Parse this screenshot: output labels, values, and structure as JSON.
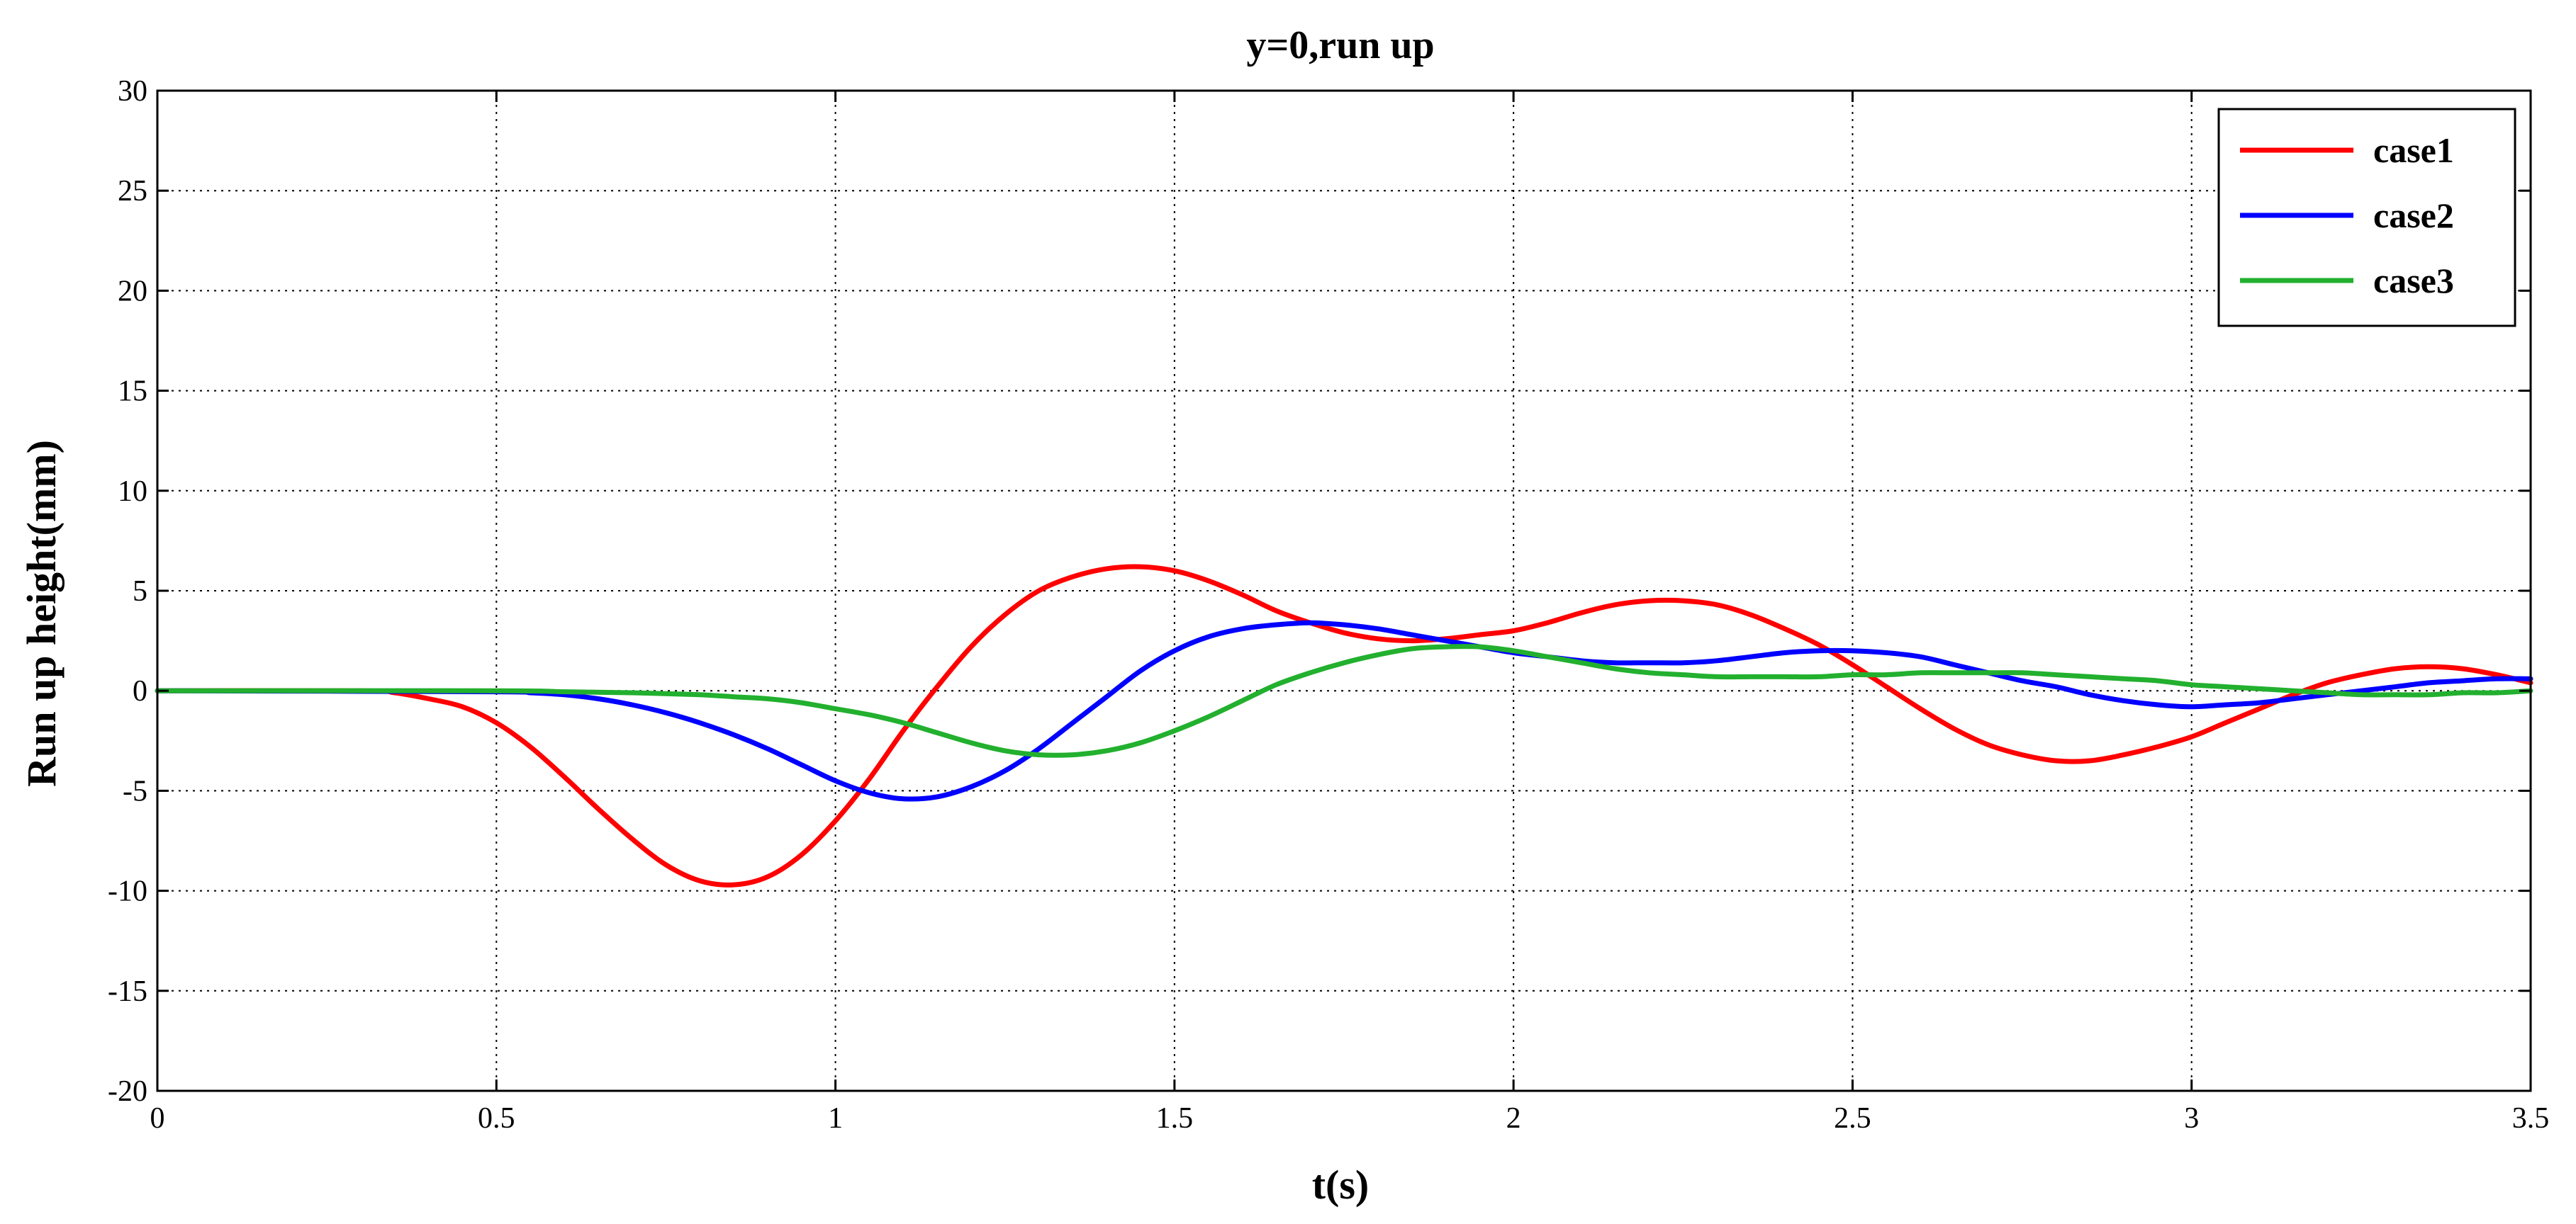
{
  "chart_data": {
    "type": "line",
    "title": "y=0,run up",
    "xlabel": "t(s)",
    "ylabel": "Run up height(mm)",
    "xlim": [
      0,
      3.5
    ],
    "ylim": [
      -20,
      30
    ],
    "x_ticks": [
      0,
      0.5,
      1,
      1.5,
      2,
      2.5,
      3,
      3.5
    ],
    "y_ticks": [
      -20,
      -15,
      -10,
      -5,
      0,
      5,
      10,
      15,
      20,
      25,
      30
    ],
    "x_tick_labels": [
      "0",
      "0.5",
      "1",
      "1.5",
      "2",
      "2.5",
      "3",
      "3.5"
    ],
    "y_tick_labels": [
      "-20",
      "-15",
      "-10",
      "-5",
      "0",
      "5",
      "10",
      "15",
      "20",
      "25",
      "30"
    ],
    "grid": true,
    "legend_position": "top-right",
    "series": [
      {
        "name": "case1",
        "color": "#ff0000",
        "x": [
          0,
          0.3,
          0.35,
          0.4,
          0.45,
          0.5,
          0.55,
          0.6,
          0.65,
          0.7,
          0.75,
          0.8,
          0.85,
          0.9,
          0.95,
          1.0,
          1.05,
          1.1,
          1.15,
          1.2,
          1.25,
          1.3,
          1.35,
          1.4,
          1.45,
          1.5,
          1.55,
          1.6,
          1.65,
          1.7,
          1.75,
          1.8,
          1.85,
          1.9,
          1.95,
          2.0,
          2.05,
          2.1,
          2.15,
          2.2,
          2.25,
          2.3,
          2.35,
          2.4,
          2.45,
          2.5,
          2.55,
          2.6,
          2.65,
          2.7,
          2.75,
          2.8,
          2.85,
          2.9,
          2.95,
          3.0,
          3.05,
          3.1,
          3.15,
          3.2,
          3.25,
          3.3,
          3.35,
          3.4,
          3.45,
          3.5
        ],
        "values": [
          0,
          0,
          -0.1,
          -0.4,
          -0.8,
          -1.6,
          -2.8,
          -4.3,
          -5.9,
          -7.4,
          -8.7,
          -9.5,
          -9.7,
          -9.3,
          -8.2,
          -6.5,
          -4.4,
          -2.0,
          0.2,
          2.2,
          3.8,
          5.0,
          5.7,
          6.1,
          6.2,
          6.0,
          5.5,
          4.8,
          4.0,
          3.4,
          2.9,
          2.6,
          2.5,
          2.6,
          2.8,
          3.0,
          3.4,
          3.9,
          4.3,
          4.5,
          4.5,
          4.3,
          3.8,
          3.1,
          2.3,
          1.3,
          0.2,
          -0.9,
          -1.9,
          -2.7,
          -3.2,
          -3.5,
          -3.5,
          -3.2,
          -2.8,
          -2.3,
          -1.6,
          -0.9,
          -0.2,
          0.4,
          0.8,
          1.1,
          1.2,
          1.1,
          0.8,
          0.4
        ]
      },
      {
        "name": "case2",
        "color": "#0000ff",
        "x": [
          0,
          0.5,
          0.55,
          0.6,
          0.65,
          0.7,
          0.75,
          0.8,
          0.85,
          0.9,
          0.95,
          1.0,
          1.05,
          1.1,
          1.15,
          1.2,
          1.25,
          1.3,
          1.35,
          1.4,
          1.45,
          1.5,
          1.55,
          1.6,
          1.65,
          1.7,
          1.75,
          1.8,
          1.85,
          1.9,
          1.95,
          2.0,
          2.05,
          2.1,
          2.15,
          2.2,
          2.25,
          2.3,
          2.35,
          2.4,
          2.45,
          2.5,
          2.55,
          2.6,
          2.65,
          2.7,
          2.75,
          2.8,
          2.85,
          2.9,
          2.95,
          3.0,
          3.05,
          3.1,
          3.15,
          3.2,
          3.25,
          3.3,
          3.35,
          3.4,
          3.45,
          3.5
        ],
        "values": [
          0,
          -0.05,
          -0.1,
          -0.2,
          -0.4,
          -0.7,
          -1.1,
          -1.6,
          -2.2,
          -2.9,
          -3.7,
          -4.5,
          -5.1,
          -5.4,
          -5.3,
          -4.8,
          -4.0,
          -2.9,
          -1.6,
          -0.3,
          1.0,
          2.0,
          2.7,
          3.1,
          3.3,
          3.4,
          3.3,
          3.1,
          2.8,
          2.5,
          2.2,
          1.9,
          1.7,
          1.5,
          1.4,
          1.4,
          1.4,
          1.5,
          1.7,
          1.9,
          2.0,
          2.0,
          1.9,
          1.7,
          1.3,
          0.9,
          0.5,
          0.2,
          -0.2,
          -0.5,
          -0.7,
          -0.8,
          -0.7,
          -0.6,
          -0.4,
          -0.2,
          0.0,
          0.2,
          0.4,
          0.5,
          0.6,
          0.6
        ]
      },
      {
        "name": "case3",
        "color": "#22b02e",
        "x": [
          0,
          0.5,
          0.6,
          0.7,
          0.8,
          0.85,
          0.9,
          0.95,
          1.0,
          1.05,
          1.1,
          1.15,
          1.2,
          1.25,
          1.3,
          1.35,
          1.4,
          1.45,
          1.5,
          1.55,
          1.6,
          1.65,
          1.7,
          1.75,
          1.8,
          1.85,
          1.9,
          1.95,
          2.0,
          2.05,
          2.1,
          2.15,
          2.2,
          2.25,
          2.3,
          2.35,
          2.4,
          2.45,
          2.5,
          2.55,
          2.6,
          2.65,
          2.7,
          2.75,
          2.8,
          2.85,
          2.9,
          2.95,
          3.0,
          3.05,
          3.1,
          3.15,
          3.2,
          3.25,
          3.3,
          3.35,
          3.4,
          3.45,
          3.5
        ],
        "values": [
          0,
          0,
          -0.05,
          -0.1,
          -0.2,
          -0.3,
          -0.4,
          -0.6,
          -0.9,
          -1.2,
          -1.6,
          -2.1,
          -2.6,
          -3.0,
          -3.2,
          -3.2,
          -3.0,
          -2.6,
          -2.0,
          -1.3,
          -0.5,
          0.3,
          0.9,
          1.4,
          1.8,
          2.1,
          2.2,
          2.2,
          2.0,
          1.7,
          1.4,
          1.1,
          0.9,
          0.8,
          0.7,
          0.7,
          0.7,
          0.7,
          0.8,
          0.8,
          0.9,
          0.9,
          0.9,
          0.9,
          0.8,
          0.7,
          0.6,
          0.5,
          0.3,
          0.2,
          0.1,
          0.0,
          -0.1,
          -0.2,
          -0.2,
          -0.2,
          -0.1,
          -0.1,
          0.0
        ]
      }
    ]
  }
}
